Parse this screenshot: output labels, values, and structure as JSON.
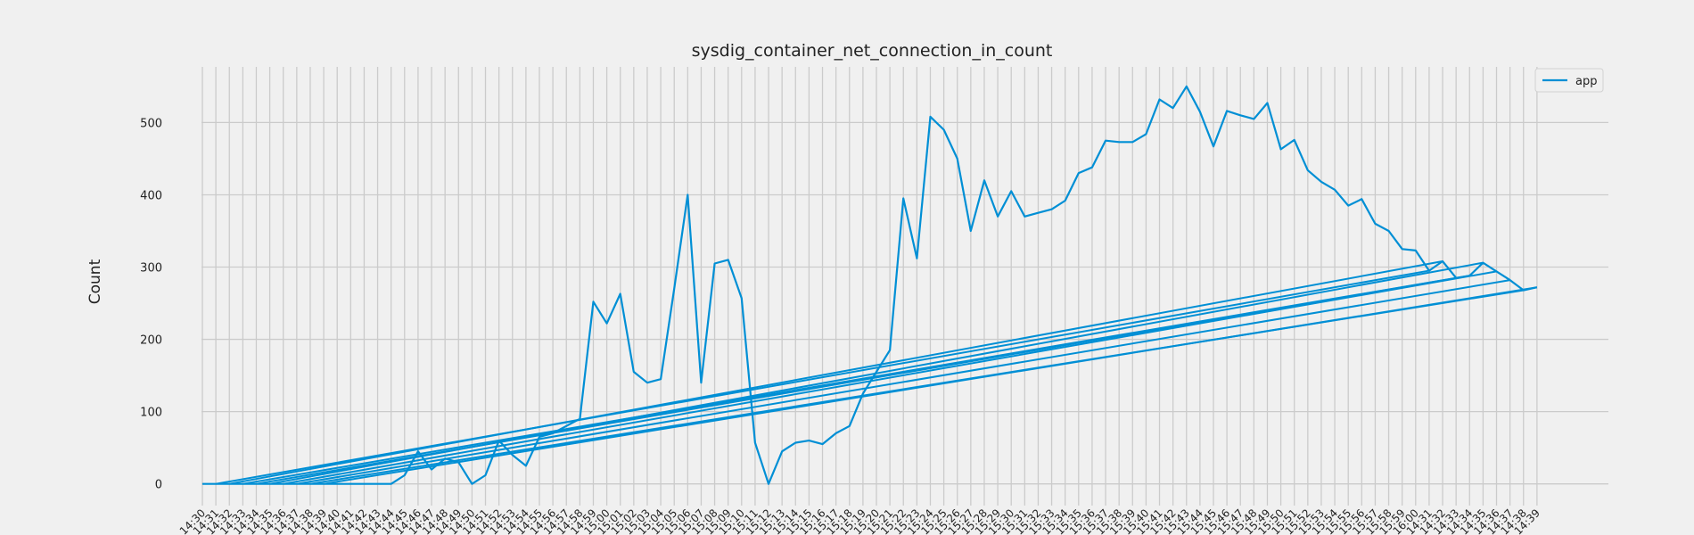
{
  "chart_data": {
    "type": "line",
    "title": "sysdig_container_net_connection_in_count",
    "xlabel": "",
    "ylabel": "Count",
    "ylim": [
      -30,
      577
    ],
    "yticks": [
      0,
      100,
      200,
      300,
      400,
      500
    ],
    "grid": true,
    "legend": {
      "position": "top-right"
    },
    "colors": {
      "background": "#f0f0f0",
      "grid": "#cbcbcb",
      "line": "#008fd5"
    },
    "series": [
      {
        "name": "app",
        "color": "#008fd5",
        "x": [
          "14:30",
          "14:31",
          "14:32",
          "14:33",
          "14:34",
          "14:35",
          "14:36",
          "14:37",
          "14:38",
          "14:39",
          "14:40",
          "14:41",
          "14:42",
          "14:43",
          "14:44",
          "14:45",
          "14:46",
          "14:47",
          "14:48",
          "14:49",
          "14:50",
          "14:51",
          "14:52",
          "14:53",
          "14:54",
          "14:55",
          "14:56",
          "14:57",
          "14:58",
          "14:59",
          "15:00",
          "15:01",
          "15:02",
          "15:03",
          "15:04",
          "15:05",
          "15:06",
          "15:07",
          "15:08",
          "15:09",
          "15:10",
          "15:11",
          "15:12",
          "15:13",
          "15:14",
          "15:15",
          "15:16",
          "15:17",
          "15:18",
          "15:19",
          "15:20",
          "15:21",
          "15:22",
          "15:23",
          "15:24",
          "15:25",
          "15:26",
          "15:27",
          "15:28",
          "15:29",
          "15:30",
          "15:31",
          "15:32",
          "15:33",
          "15:34",
          "15:35",
          "15:36",
          "15:37",
          "15:38",
          "15:39",
          "15:40",
          "15:41",
          "15:42",
          "15:43",
          "15:44",
          "15:45",
          "15:46",
          "15:47",
          "15:48",
          "15:49",
          "15:50",
          "15:51",
          "15:52",
          "15:53",
          "15:54",
          "15:55",
          "15:56",
          "15:57",
          "15:58",
          "15:59",
          "16:00",
          "14:31",
          "14:32",
          "14:33",
          "14:34",
          "14:35",
          "14:36",
          "14:37",
          "14:38",
          "14:39"
        ],
        "y": [
          0,
          0,
          0,
          0,
          0,
          0,
          0,
          0,
          0,
          0,
          0,
          0,
          0,
          0,
          0,
          12,
          45,
          20,
          35,
          30,
          0,
          12,
          60,
          40,
          25,
          65,
          70,
          80,
          90,
          252,
          222,
          263,
          155,
          140,
          145,
          270,
          400,
          140,
          305,
          310,
          257,
          57,
          0,
          45,
          57,
          60,
          55,
          70,
          80,
          125,
          155,
          185,
          395,
          312,
          508,
          490,
          450,
          350,
          420,
          370,
          405,
          370,
          375,
          380,
          392,
          430,
          438,
          475,
          473,
          473,
          484,
          532,
          520,
          550,
          515,
          467,
          516,
          510,
          505,
          527,
          463,
          476,
          434,
          418,
          407,
          385,
          394,
          360,
          350,
          325,
          323,
          295,
          308,
          285,
          288,
          306,
          294,
          282,
          268,
          272
        ]
      }
    ]
  }
}
